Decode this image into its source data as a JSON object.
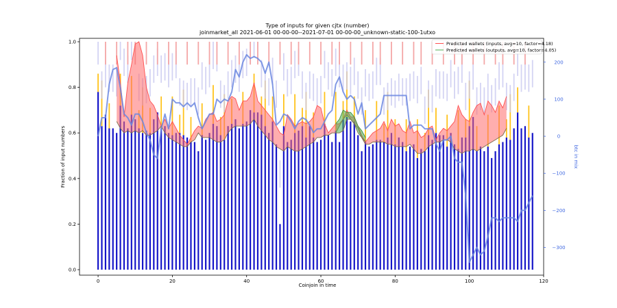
{
  "chart_data": {
    "type": "bar",
    "title": "Type of inputs for given cjtx (number)",
    "subtitle": "joinmarket_all 2021-06-01 00-00-00--2021-07-01 00-00-00_unknown-static-100-1utxo",
    "xlabel": "Coinjoin in time",
    "ylabel": "Fraction of input numbers",
    "ylabel_right": "btc in mix",
    "xlim": [
      -5,
      120
    ],
    "ylim": [
      0.0,
      1.0
    ],
    "ylim_right": [
      -360,
      255
    ],
    "x_ticks": [
      "0",
      "20",
      "40",
      "60",
      "80",
      "100",
      "120"
    ],
    "y_ticks": [
      "0.0",
      "0.2",
      "0.4",
      "0.6",
      "0.8",
      "1.0"
    ],
    "y_ticks_right": [
      "200",
      "100",
      "0",
      "−100",
      "−200",
      "−300"
    ],
    "legend_position": "top-right",
    "legend": [
      {
        "label": "Predicted wallets (inputs, avg=10, factor=4.18)",
        "color": "#ff4d4d"
      },
      {
        "label": "Predicted wallets (outputs, avg=10, factor=4.05)",
        "color": "#4caf50"
      }
    ],
    "colors": {
      "bars_main": "#1414c8",
      "bars_gold": "#ffc21a",
      "bars_pink": "#f4a6a6",
      "bars_lavender": "#c8c8f0",
      "btc_line": "#6b87e0",
      "input_band": "#ff6b6b",
      "output_band": "#4caf50"
    },
    "bars_blue_top": [
      0.78,
      0.63,
      0.68,
      0.62,
      0.62,
      0.6,
      0.72,
      0.65,
      0.62,
      0.68,
      0.66,
      0.62,
      0.6,
      0.61,
      0.6,
      0.66,
      0.69,
      0.62,
      0.63,
      0.6,
      0.59,
      0.6,
      0.6,
      0.59,
      0.58,
      0.56,
      0.56,
      0.52,
      0.59,
      0.57,
      0.6,
      0.64,
      0.63,
      0.59,
      0.57,
      0.63,
      0.64,
      0.66,
      0.62,
      0.64,
      0.65,
      0.7,
      0.69,
      0.69,
      0.68,
      0.63,
      0.6,
      0.65,
      0.55,
      0.2,
      0.63,
      0.56,
      0.57,
      0.6,
      0.61,
      0.63,
      0.58,
      0.63,
      0.58,
      0.56,
      0.57,
      0.64,
      0.59,
      0.56,
      0.61,
      0.56,
      0.66,
      0.67,
      0.65,
      0.65,
      0.59,
      0.52,
      0.56,
      0.54,
      0.55,
      0.57,
      0.57,
      0.56,
      0.58,
      0.6,
      0.55,
      0.58,
      0.56,
      0.52,
      0.54,
      0.55,
      0.49,
      0.53,
      0.52,
      0.59,
      0.57,
      0.6,
      0.59,
      0.59,
      0.54,
      0.6,
      0.55,
      0.53,
      0.58,
      0.58,
      0.63,
      0.67,
      0.52,
      0.54,
      0.52,
      0.54,
      0.49,
      0.52,
      0.55,
      0.56,
      0.58,
      0.57,
      0.62,
      0.69,
      0.62,
      0.63,
      0.58,
      0.6
    ],
    "input_band_x": [
      5,
      6,
      7,
      8,
      9,
      10,
      11,
      12,
      13,
      14,
      15,
      16,
      17,
      18,
      19,
      20,
      21,
      22,
      23,
      24,
      25,
      26,
      27,
      28,
      29,
      30,
      31,
      32,
      33,
      34,
      35,
      36,
      37,
      38,
      39,
      40,
      41,
      42,
      43,
      44,
      45,
      46,
      47,
      48,
      49,
      50,
      51,
      52,
      53,
      54,
      55,
      56,
      57,
      58,
      59,
      60,
      61,
      62,
      63,
      64,
      65,
      66,
      67,
      68,
      69,
      70,
      71,
      72,
      73,
      74,
      75,
      76,
      77,
      78,
      79,
      80,
      81,
      82,
      83,
      84,
      85,
      86,
      87,
      88,
      89,
      90,
      91,
      92,
      93,
      94,
      95,
      96,
      97,
      98,
      99,
      100,
      101,
      102,
      103,
      104,
      105,
      106,
      107,
      108,
      109,
      110
    ],
    "input_band_upper": [
      0.94,
      0.82,
      0.67,
      0.82,
      0.9,
      0.99,
      1.0,
      0.94,
      0.8,
      0.74,
      0.72,
      0.68,
      0.63,
      0.66,
      0.62,
      0.65,
      0.62,
      0.59,
      0.57,
      0.55,
      0.58,
      0.61,
      0.63,
      0.62,
      0.66,
      0.68,
      0.69,
      0.65,
      0.66,
      0.68,
      0.74,
      0.76,
      0.75,
      0.7,
      0.74,
      0.74,
      0.76,
      0.82,
      0.74,
      0.72,
      0.7,
      0.68,
      0.66,
      0.63,
      0.6,
      0.59,
      0.68,
      0.66,
      0.63,
      0.64,
      0.65,
      0.64,
      0.65,
      0.67,
      0.72,
      0.71,
      0.64,
      0.6,
      0.62,
      0.64,
      0.64,
      0.66,
      0.7,
      0.67,
      0.67,
      0.63,
      0.59,
      0.56,
      0.58,
      0.6,
      0.61,
      0.62,
      0.65,
      0.61,
      0.66,
      0.63,
      0.64,
      0.61,
      0.6,
      0.65,
      0.6,
      0.61,
      0.58,
      0.59,
      0.62,
      0.63,
      0.57,
      0.6,
      0.62,
      0.61,
      0.63,
      0.65,
      0.72,
      0.68,
      0.66,
      0.65,
      0.69,
      0.72,
      0.73,
      0.68,
      0.74,
      0.72,
      0.69,
      0.74,
      0.71,
      0.76
    ],
    "input_band_lower": [
      0.65,
      0.62,
      0.6,
      0.61,
      0.6,
      0.61,
      0.6,
      0.61,
      0.59,
      0.59,
      0.6,
      0.61,
      0.63,
      0.6,
      0.58,
      0.57,
      0.56,
      0.55,
      0.54,
      0.54,
      0.56,
      0.57,
      0.6,
      0.58,
      0.58,
      0.58,
      0.57,
      0.56,
      0.56,
      0.57,
      0.6,
      0.62,
      0.63,
      0.63,
      0.63,
      0.63,
      0.64,
      0.66,
      0.63,
      0.61,
      0.59,
      0.57,
      0.56,
      0.54,
      0.53,
      0.52,
      0.54,
      0.53,
      0.52,
      0.52,
      0.53,
      0.54,
      0.55,
      0.56,
      0.58,
      0.58,
      0.59,
      0.59,
      0.6,
      0.6,
      0.63,
      0.66,
      0.68,
      0.66,
      0.64,
      0.62,
      0.58,
      0.55,
      0.55,
      0.56,
      0.56,
      0.56,
      0.56,
      0.55,
      0.55,
      0.54,
      0.54,
      0.54,
      0.54,
      0.55,
      0.53,
      0.51,
      0.51,
      0.52,
      0.54,
      0.55,
      0.56,
      0.56,
      0.57,
      0.57,
      0.56,
      0.53,
      0.52,
      0.51,
      0.52,
      0.52,
      0.53,
      0.52,
      0.53,
      0.54,
      0.55,
      0.56,
      0.57,
      0.58,
      0.59,
      0.62
    ],
    "output_band_x": [
      64,
      65,
      66,
      67,
      68,
      69,
      70,
      71,
      72
    ],
    "output_band_upper": [
      0.64,
      0.66,
      0.7,
      0.69,
      0.69,
      0.67,
      0.63,
      0.61,
      0.58
    ],
    "output_band_lower": [
      0.6,
      0.6,
      0.61,
      0.66,
      0.66,
      0.64,
      0.6,
      0.58,
      0.56
    ],
    "btc_line_x": [
      0,
      1,
      2,
      3,
      4,
      5,
      6,
      7,
      8,
      9,
      10,
      11,
      12,
      13,
      14,
      15,
      16,
      17,
      18,
      19,
      20,
      21,
      22,
      23,
      24,
      25,
      26,
      27,
      28,
      29,
      30,
      31,
      32,
      33,
      34,
      35,
      36,
      37,
      38,
      39,
      40,
      41,
      42,
      43,
      44,
      45,
      46,
      47,
      48,
      49,
      50,
      51,
      52,
      53,
      54,
      55,
      56,
      57,
      58,
      59,
      60,
      61,
      62,
      63,
      64,
      65,
      66,
      67,
      68,
      69,
      70,
      71,
      72,
      73,
      74,
      75,
      76,
      77,
      78,
      79,
      80,
      81,
      82,
      83,
      84,
      85,
      86,
      87,
      88,
      89,
      90,
      91,
      92,
      93,
      94,
      95,
      96,
      97,
      98,
      99,
      100,
      101,
      102,
      103,
      104,
      105,
      106,
      107,
      108,
      109,
      110,
      111,
      112,
      113,
      114,
      115,
      116,
      117
    ],
    "btc_line_y": [
      0,
      50,
      50,
      140,
      180,
      185,
      130,
      60,
      50,
      30,
      60,
      60,
      40,
      10,
      -10,
      -50,
      -60,
      20,
      60,
      20,
      100,
      90,
      90,
      80,
      90,
      80,
      90,
      50,
      20,
      40,
      60,
      60,
      100,
      90,
      100,
      95,
      120,
      180,
      160,
      200,
      220,
      210,
      215,
      210,
      200,
      170,
      200,
      140,
      30,
      40,
      60,
      55,
      40,
      20,
      40,
      50,
      45,
      30,
      10,
      20,
      20,
      40,
      60,
      70,
      140,
      160,
      120,
      100,
      110,
      100,
      60,
      90,
      20,
      30,
      40,
      50,
      60,
      110,
      110,
      110,
      110,
      110,
      110,
      110,
      20,
      30,
      30,
      30,
      20,
      20,
      20,
      -20,
      -40,
      -10,
      -10,
      0,
      -60,
      -70,
      -70,
      -160,
      -340,
      -320,
      -300,
      -320,
      -310,
      -270,
      -220,
      -220,
      -230,
      -220,
      -220,
      -220,
      -220,
      -230,
      -200,
      -200,
      -180,
      -160
    ]
  }
}
